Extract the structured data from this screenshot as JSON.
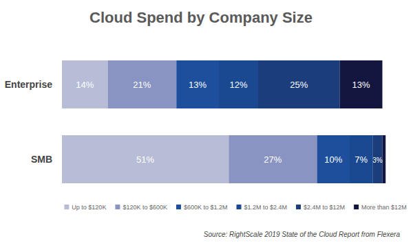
{
  "chart_data": {
    "type": "bar",
    "title": "Cloud Spend by Company Size",
    "source": "Source: RightScale 2019 State of the Cloud Report from Flexera",
    "orientation": "horizontal",
    "stacked": true,
    "data_labels": true,
    "tick_labels": false,
    "grid": false,
    "legend": "bottom",
    "categories": [
      "Enterprise",
      "SMB"
    ],
    "xlim": [
      0,
      100
    ],
    "series": [
      {
        "name": "Up to $120K",
        "color": "#b7bdd7",
        "values": [
          14,
          51
        ],
        "value_labels": [
          "14%",
          "51%"
        ]
      },
      {
        "name": "$120K to $600K",
        "color": "#8a94c2",
        "values": [
          21,
          27
        ],
        "value_labels": [
          "21%",
          "27%"
        ]
      },
      {
        "name": "$600K to $1.2M",
        "color": "#1d4f9d",
        "values": [
          13,
          10
        ],
        "value_labels": [
          "13%",
          "10%"
        ]
      },
      {
        "name": "$1.2M to $2.4M",
        "color": "#1a4891",
        "values": [
          12,
          7
        ],
        "value_labels": [
          "12%",
          "7%"
        ]
      },
      {
        "name": "$2.4M to $12M",
        "color": "#1b3d7c",
        "values": [
          25,
          3
        ],
        "value_labels": [
          "25%",
          "3%"
        ]
      },
      {
        "name": "More than $12M",
        "color": "#13173f",
        "values": [
          13,
          1
        ],
        "value_labels": [
          "13%",
          null
        ]
      }
    ]
  }
}
